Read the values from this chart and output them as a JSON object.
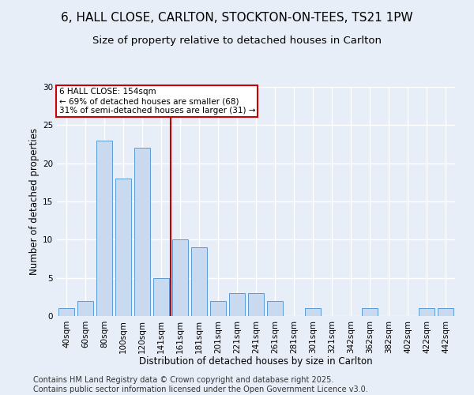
{
  "title1": "6, HALL CLOSE, CARLTON, STOCKTON-ON-TEES, TS21 1PW",
  "title2": "Size of property relative to detached houses in Carlton",
  "xlabel": "Distribution of detached houses by size in Carlton",
  "ylabel": "Number of detached properties",
  "categories": [
    "40sqm",
    "60sqm",
    "80sqm",
    "100sqm",
    "120sqm",
    "141sqm",
    "161sqm",
    "181sqm",
    "201sqm",
    "221sqm",
    "241sqm",
    "261sqm",
    "281sqm",
    "301sqm",
    "321sqm",
    "342sqm",
    "362sqm",
    "382sqm",
    "402sqm",
    "422sqm",
    "442sqm"
  ],
  "values": [
    1,
    2,
    23,
    18,
    22,
    5,
    10,
    9,
    2,
    3,
    3,
    2,
    0,
    1,
    0,
    0,
    1,
    0,
    0,
    1,
    1
  ],
  "bar_color": "#c9d9f0",
  "bar_edge_color": "#5b9bd5",
  "bg_color": "#e8eef8",
  "grid_color": "#ffffff",
  "annotation_line_label": "6 HALL CLOSE: 154sqm",
  "annotation_pct1": "← 69% of detached houses are smaller (68)",
  "annotation_pct2": "31% of semi-detached houses are larger (31) →",
  "annotation_box_color": "#ffffff",
  "annotation_box_edge_color": "#cc0000",
  "vline_color": "#cc0000",
  "ylim": [
    0,
    30
  ],
  "yticks": [
    0,
    5,
    10,
    15,
    20,
    25,
    30
  ],
  "footer": "Contains HM Land Registry data © Crown copyright and database right 2025.\nContains public sector information licensed under the Open Government Licence v3.0.",
  "footer_fontsize": 7,
  "title1_fontsize": 11,
  "title2_fontsize": 9.5,
  "axis_label_fontsize": 8.5,
  "tick_fontsize": 7.5,
  "annot_fontsize": 7.5
}
